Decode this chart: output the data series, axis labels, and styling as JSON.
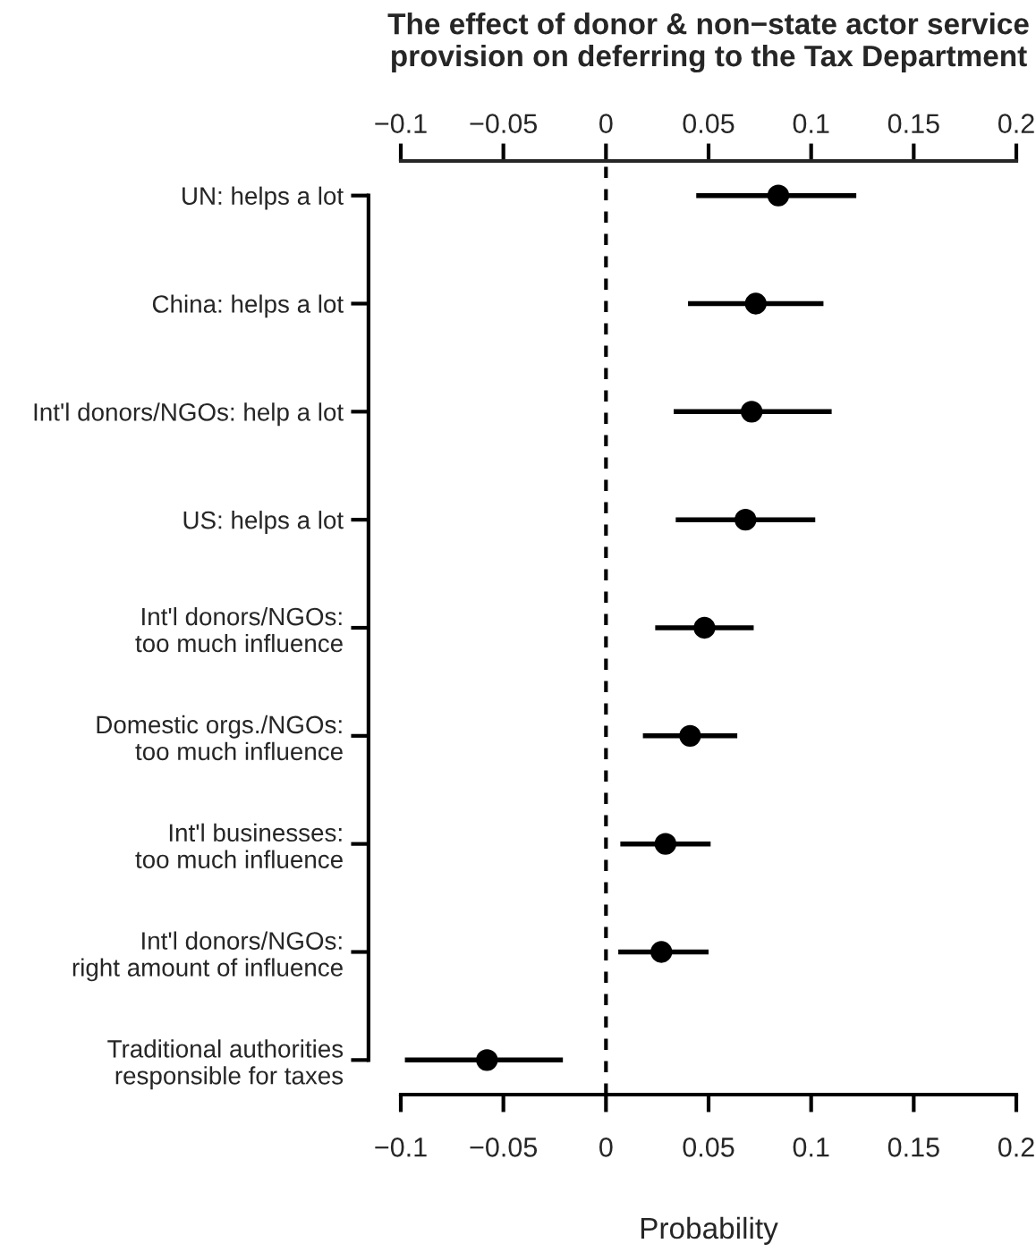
{
  "chart_data": {
    "type": "scatter",
    "orientation": "horizontal",
    "title": "The effect of donor & non−state actor service\nprovision on deferring to the Tax Department",
    "xlabel": "Probability",
    "categories": [
      "UN: helps a lot",
      "China: helps a lot",
      "Int'l donors/NGOs: help a lot",
      "US: helps a lot",
      "Int'l donors/NGOs:\ntoo much influence",
      "Domestic orgs./NGOs:\ntoo much influence",
      "Int'l businesses:\ntoo much influence",
      "Int'l donors/NGOs:\nright amount of influence",
      "Traditional authorities\nresponsible for taxes"
    ],
    "series": [
      {
        "color": "#000000",
        "values": [
          0.084,
          0.073,
          0.071,
          0.068,
          0.048,
          0.041,
          0.029,
          0.027,
          -0.058
        ],
        "errors": [
          [
            0.044,
            0.122
          ],
          [
            0.04,
            0.106
          ],
          [
            0.033,
            0.11
          ],
          [
            0.034,
            0.102
          ],
          [
            0.024,
            0.072
          ],
          [
            0.018,
            0.064
          ],
          [
            0.007,
            0.051
          ],
          [
            0.006,
            0.05
          ],
          [
            -0.098,
            -0.021
          ]
        ]
      }
    ],
    "xlim": [
      -0.1,
      0.2
    ],
    "xticks": [
      {
        "value": -0.1,
        "label": "−0.1"
      },
      {
        "value": -0.05,
        "label": "−0.05"
      },
      0,
      0.05,
      0.1,
      0.15,
      0.2
    ],
    "x2lim": [
      -0.1,
      0.2
    ],
    "x2ticks": [
      {
        "value": -0.1,
        "label": "−0.1"
      },
      {
        "value": -0.05,
        "label": "−0.05"
      },
      0,
      0.05,
      0.1,
      0.15,
      0.2
    ],
    "ref_lines": [
      {
        "axis": "x",
        "value": 0,
        "line_style": "dashed",
        "color": "#000000"
      }
    ],
    "marker": "circle",
    "grid": false,
    "legend": false
  }
}
